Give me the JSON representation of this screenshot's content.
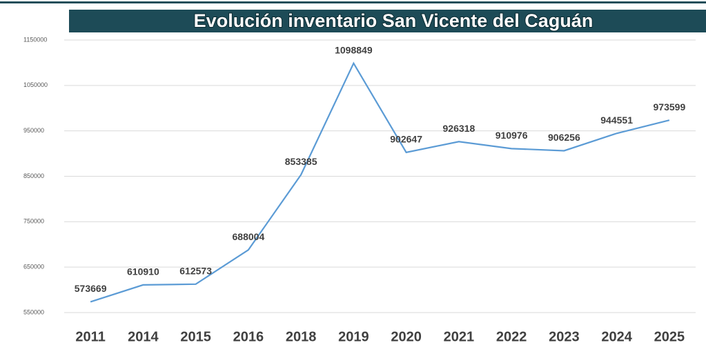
{
  "chart_data": {
    "type": "line",
    "title": "Evolución inventario San Vicente del Caguán",
    "categories": [
      "2011",
      "2014",
      "2015",
      "2016",
      "2018",
      "2019",
      "2020",
      "2021",
      "2022",
      "2023",
      "2024",
      "2025"
    ],
    "values": [
      573669,
      610910,
      612573,
      688004,
      853385,
      1098849,
      902647,
      926318,
      910976,
      906256,
      944551,
      973599
    ],
    "color": "#5b9bd5",
    "ylim": [
      550000,
      1150000
    ],
    "yticks": [
      550000,
      650000,
      750000,
      850000,
      950000,
      1050000,
      1150000
    ],
    "grid": true
  }
}
